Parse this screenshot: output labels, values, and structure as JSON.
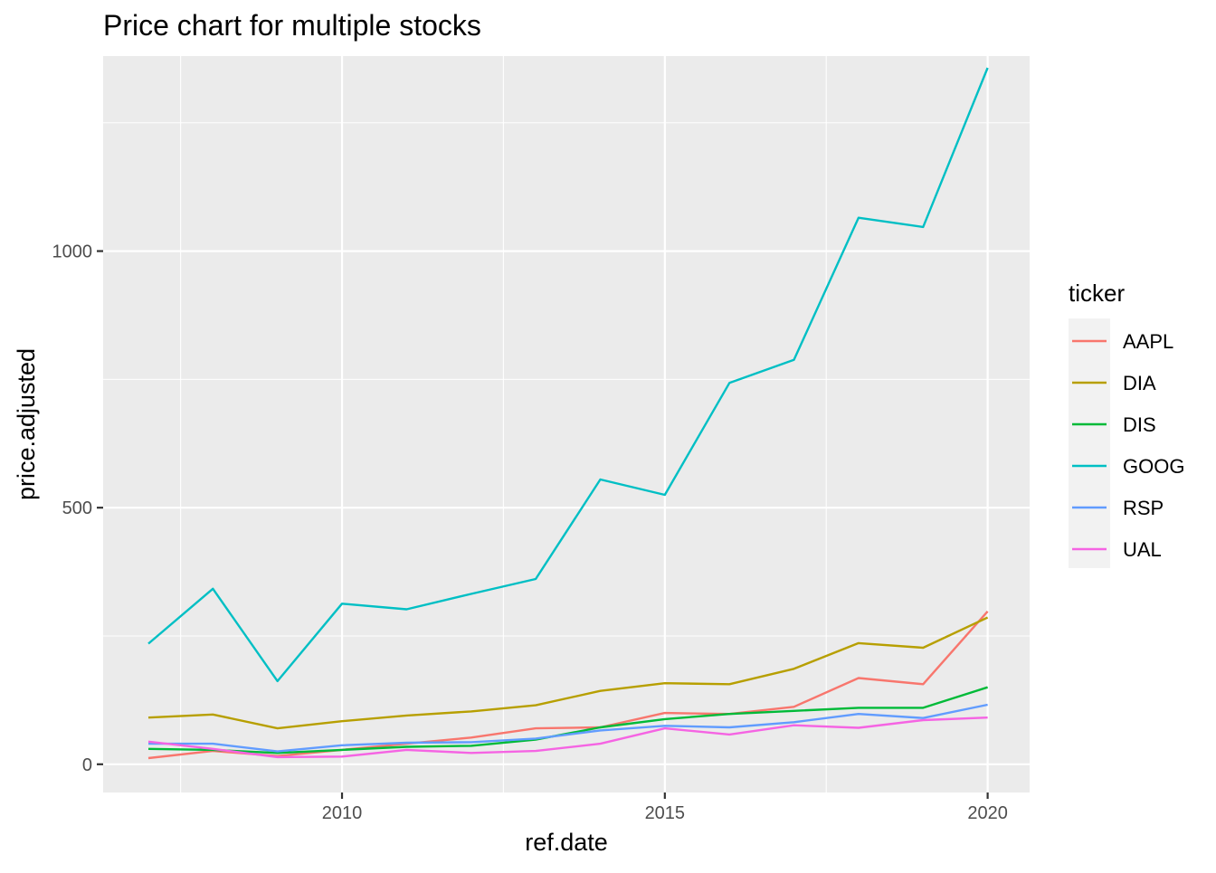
{
  "chart_data": {
    "type": "line",
    "title": "Price chart for multiple stocks",
    "xlabel": "ref.date",
    "ylabel": "price.adjusted",
    "x": [
      2007,
      2008,
      2009,
      2010,
      2011,
      2012,
      2013,
      2014,
      2015,
      2016,
      2017,
      2018,
      2019,
      2020
    ],
    "xlim": [
      2006.3,
      2020.65
    ],
    "ylim": [
      -55,
      1380
    ],
    "x_ticks": [
      2010,
      2015,
      2020
    ],
    "x_tick_labels": [
      "2010",
      "2015",
      "2020"
    ],
    "y_ticks": [
      0,
      500,
      1000
    ],
    "y_tick_labels": [
      "0",
      "500",
      "1000"
    ],
    "grid": true,
    "legend": {
      "title": "ticker",
      "position": "right"
    },
    "series": [
      {
        "name": "AAPL",
        "color": "#F8766D",
        "values": [
          12,
          26,
          16,
          28,
          40,
          52,
          70,
          72,
          100,
          98,
          112,
          168,
          156,
          298
        ]
      },
      {
        "name": "DIA",
        "color": "#B79F00",
        "values": [
          91,
          97,
          70,
          84,
          95,
          103,
          115,
          143,
          158,
          156,
          186,
          236,
          227,
          286
        ]
      },
      {
        "name": "DIS",
        "color": "#00BA38",
        "values": [
          30,
          28,
          22,
          28,
          34,
          36,
          48,
          72,
          88,
          98,
          104,
          110,
          110,
          150
        ]
      },
      {
        "name": "GOOG",
        "color": "#00BFC4",
        "values": [
          235,
          342,
          162,
          313,
          302,
          332,
          361,
          555,
          525,
          743,
          788,
          1065,
          1047,
          1357
        ]
      },
      {
        "name": "RSP",
        "color": "#619CFF",
        "values": [
          40,
          40,
          25,
          37,
          42,
          43,
          50,
          66,
          75,
          72,
          82,
          98,
          90,
          116
        ]
      },
      {
        "name": "UAL",
        "color": "#F564E3",
        "values": [
          44,
          30,
          14,
          15,
          28,
          22,
          26,
          40,
          70,
          58,
          76,
          71,
          86,
          91
        ]
      }
    ]
  }
}
